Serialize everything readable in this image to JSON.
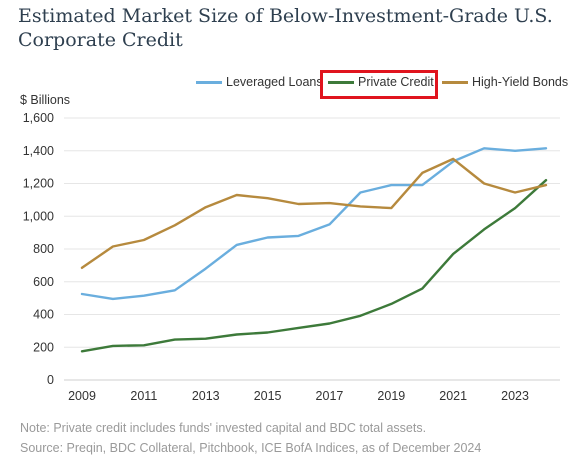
{
  "title_line1": "Estimated Market Size of Below-Investment-Grade U.S.",
  "title_line2": "Corporate Credit",
  "note": "Note: Private credit includes funds' invested capital and BDC total assets.",
  "source": "Source: Preqin, BDC Collateral, Pitchbook, ICE BofA Indices, as of December 2024",
  "chart_data": {
    "type": "line",
    "title": "Estimated Market Size of Below-Investment-Grade U.S. Corporate Credit",
    "ylabel": "$ Billions",
    "xlabel": "",
    "x": [
      2009,
      2010,
      2011,
      2012,
      2013,
      2014,
      2015,
      2016,
      2017,
      2018,
      2019,
      2020,
      2021,
      2022,
      2023,
      2024
    ],
    "xticks": [
      "2009",
      "2011",
      "2013",
      "2015",
      "2017",
      "2019",
      "2021",
      "2023"
    ],
    "yticks": [
      "0",
      "200",
      "400",
      "600",
      "800",
      "1,000",
      "1,200",
      "1,400",
      "1,600"
    ],
    "ylim": [
      0,
      1600
    ],
    "grid": "horizontal",
    "legend_position": "top-right",
    "highlighted_series": "Private Credit",
    "series": [
      {
        "name": "Leveraged Loans",
        "color": "#6aaede",
        "values": [
          525,
          495,
          515,
          548,
          680,
          825,
          870,
          880,
          950,
          1145,
          1190,
          1190,
          1335,
          1415,
          1400,
          1415
        ]
      },
      {
        "name": "Private Credit",
        "color": "#3d7a3a",
        "values": [
          175,
          208,
          212,
          247,
          252,
          278,
          290,
          318,
          345,
          392,
          465,
          558,
          770,
          920,
          1050,
          1220
        ]
      },
      {
        "name": "High-Yield Bonds",
        "color": "#b68a3e",
        "values": [
          685,
          815,
          855,
          945,
          1055,
          1130,
          1110,
          1075,
          1080,
          1060,
          1050,
          1265,
          1350,
          1200,
          1145,
          1190
        ]
      }
    ]
  }
}
